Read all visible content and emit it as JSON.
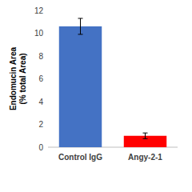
{
  "chart_data": {
    "type": "bar",
    "y_label": "Endomucin Area (% total Area)",
    "categories": [
      "Control IgG",
      "Angy-2-1"
    ],
    "values": [
      10.6,
      1.0
    ],
    "errors": [
      0.7,
      0.25
    ],
    "colors": [
      "#4472c4",
      "#ff0000"
    ],
    "ylim": [
      0,
      12
    ],
    "yticks": [
      0,
      2,
      4,
      6,
      8,
      10,
      12
    ],
    "grid": false
  }
}
